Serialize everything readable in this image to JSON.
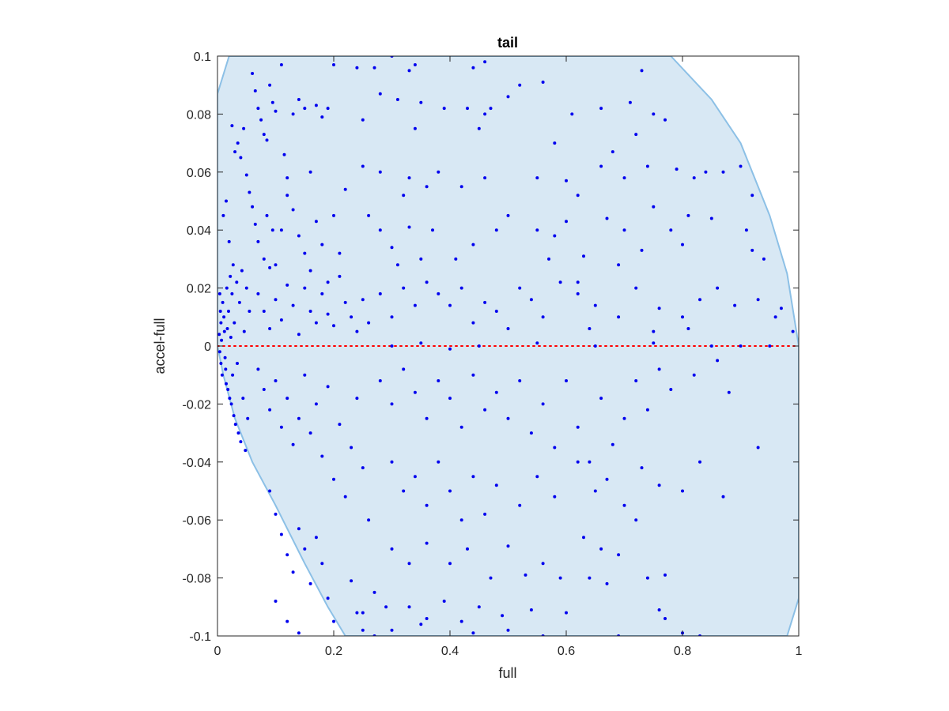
{
  "chart_data": {
    "type": "scatter",
    "title": "tail",
    "xlabel": "full",
    "ylabel": "accel-full",
    "xlim": [
      0,
      1
    ],
    "ylim": [
      -0.1,
      0.1
    ],
    "xticks": [
      "0",
      "0.2",
      "0.4",
      "0.6",
      "0.8",
      "1"
    ],
    "yticks": [
      "-0.1",
      "-0.08",
      "-0.06",
      "-0.04",
      "-0.02",
      "0",
      "0.02",
      "0.04",
      "0.06",
      "0.08",
      "0.1"
    ],
    "grid": false,
    "colors": {
      "points": "#0000ee",
      "region_fill": "#d8e8f4",
      "region_edge": "#8cc0e6",
      "zero_line": "#ff0000"
    },
    "reference_line": {
      "y": 0,
      "style": "dotted"
    },
    "region": {
      "upper": [
        [
          0,
          0.087
        ],
        [
          0.02,
          0.1
        ],
        [
          0.78,
          0.1
        ],
        [
          0.85,
          0.085
        ],
        [
          0.9,
          0.07
        ],
        [
          0.95,
          0.045
        ],
        [
          0.98,
          0.025
        ],
        [
          1.0,
          0.0
        ]
      ],
      "lower": [
        [
          0,
          0.0
        ],
        [
          0.01,
          -0.01
        ],
        [
          0.03,
          -0.025
        ],
        [
          0.06,
          -0.04
        ],
        [
          0.1,
          -0.055
        ],
        [
          0.15,
          -0.075
        ],
        [
          0.19,
          -0.09
        ],
        [
          0.22,
          -0.1
        ],
        [
          0.98,
          -0.1
        ],
        [
          1.0,
          -0.087
        ]
      ]
    },
    "points": [
      [
        0.004,
        0.018
      ],
      [
        0.005,
        0.012
      ],
      [
        0.006,
        0.008
      ],
      [
        0.003,
        0.004
      ],
      [
        0.007,
        0.002
      ],
      [
        0.004,
        -0.002
      ],
      [
        0.006,
        -0.006
      ],
      [
        0.008,
        -0.01
      ],
      [
        0.009,
        0.015
      ],
      [
        0.011,
        0.01
      ],
      [
        0.012,
        0.005
      ],
      [
        0.013,
        -0.004
      ],
      [
        0.014,
        -0.008
      ],
      [
        0.015,
        -0.013
      ],
      [
        0.016,
        0.02
      ],
      [
        0.017,
        0.006
      ],
      [
        0.018,
        -0.015
      ],
      [
        0.019,
        0.012
      ],
      [
        0.021,
        -0.018
      ],
      [
        0.022,
        0.024
      ],
      [
        0.023,
        0.003
      ],
      [
        0.024,
        -0.02
      ],
      [
        0.025,
        0.018
      ],
      [
        0.026,
        -0.01
      ],
      [
        0.027,
        0.028
      ],
      [
        0.028,
        -0.024
      ],
      [
        0.029,
        0.008
      ],
      [
        0.031,
        -0.027
      ],
      [
        0.033,
        0.022
      ],
      [
        0.034,
        -0.006
      ],
      [
        0.036,
        -0.03
      ],
      [
        0.038,
        0.015
      ],
      [
        0.04,
        -0.033
      ],
      [
        0.042,
        0.026
      ],
      [
        0.044,
        -0.018
      ],
      [
        0.046,
        0.005
      ],
      [
        0.048,
        -0.036
      ],
      [
        0.05,
        0.02
      ],
      [
        0.052,
        -0.025
      ],
      [
        0.055,
        0.012
      ],
      [
        0.01,
        0.045
      ],
      [
        0.015,
        0.05
      ],
      [
        0.02,
        0.036
      ],
      [
        0.025,
        0.076
      ],
      [
        0.03,
        0.067
      ],
      [
        0.035,
        0.07
      ],
      [
        0.04,
        0.065
      ],
      [
        0.045,
        0.075
      ],
      [
        0.05,
        0.059
      ],
      [
        0.055,
        0.053
      ],
      [
        0.06,
        0.094
      ],
      [
        0.065,
        0.088
      ],
      [
        0.07,
        0.082
      ],
      [
        0.075,
        0.078
      ],
      [
        0.08,
        0.073
      ],
      [
        0.085,
        0.071
      ],
      [
        0.09,
        0.09
      ],
      [
        0.095,
        0.084
      ],
      [
        0.1,
        0.081
      ],
      [
        0.11,
        0.097
      ],
      [
        0.115,
        0.066
      ],
      [
        0.12,
        0.058
      ],
      [
        0.13,
        0.08
      ],
      [
        0.14,
        0.085
      ],
      [
        0.15,
        0.082
      ],
      [
        0.16,
        0.06
      ],
      [
        0.17,
        0.083
      ],
      [
        0.18,
        0.079
      ],
      [
        0.19,
        0.082
      ],
      [
        0.2,
        0.097
      ],
      [
        0.06,
        0.048
      ],
      [
        0.065,
        0.042
      ],
      [
        0.07,
        0.036
      ],
      [
        0.08,
        0.03
      ],
      [
        0.085,
        0.045
      ],
      [
        0.09,
        0.027
      ],
      [
        0.095,
        0.04
      ],
      [
        0.1,
        0.028
      ],
      [
        0.11,
        0.04
      ],
      [
        0.12,
        0.052
      ],
      [
        0.13,
        0.047
      ],
      [
        0.14,
        0.038
      ],
      [
        0.15,
        0.032
      ],
      [
        0.16,
        0.026
      ],
      [
        0.17,
        0.043
      ],
      [
        0.18,
        0.035
      ],
      [
        0.19,
        0.022
      ],
      [
        0.2,
        0.045
      ],
      [
        0.21,
        0.032
      ],
      [
        0.22,
        0.054
      ],
      [
        0.07,
        0.018
      ],
      [
        0.08,
        0.012
      ],
      [
        0.09,
        0.006
      ],
      [
        0.1,
        0.016
      ],
      [
        0.11,
        0.009
      ],
      [
        0.12,
        0.021
      ],
      [
        0.13,
        0.014
      ],
      [
        0.14,
        0.004
      ],
      [
        0.15,
        0.02
      ],
      [
        0.16,
        0.012
      ],
      [
        0.17,
        0.008
      ],
      [
        0.18,
        0.018
      ],
      [
        0.19,
        0.011
      ],
      [
        0.2,
        0.007
      ],
      [
        0.21,
        0.024
      ],
      [
        0.22,
        0.015
      ],
      [
        0.23,
        0.01
      ],
      [
        0.24,
        0.005
      ],
      [
        0.25,
        0.016
      ],
      [
        0.26,
        0.008
      ],
      [
        0.07,
        -0.008
      ],
      [
        0.08,
        -0.015
      ],
      [
        0.09,
        -0.022
      ],
      [
        0.1,
        -0.012
      ],
      [
        0.11,
        -0.028
      ],
      [
        0.12,
        -0.018
      ],
      [
        0.13,
        -0.034
      ],
      [
        0.14,
        -0.025
      ],
      [
        0.15,
        -0.01
      ],
      [
        0.16,
        -0.03
      ],
      [
        0.17,
        -0.02
      ],
      [
        0.18,
        -0.038
      ],
      [
        0.19,
        -0.014
      ],
      [
        0.2,
        -0.046
      ],
      [
        0.21,
        -0.027
      ],
      [
        0.22,
        -0.052
      ],
      [
        0.23,
        -0.035
      ],
      [
        0.24,
        -0.018
      ],
      [
        0.25,
        -0.042
      ],
      [
        0.26,
        -0.06
      ],
      [
        0.09,
        -0.05
      ],
      [
        0.1,
        -0.058
      ],
      [
        0.11,
        -0.065
      ],
      [
        0.12,
        -0.072
      ],
      [
        0.13,
        -0.078
      ],
      [
        0.14,
        -0.063
      ],
      [
        0.15,
        -0.07
      ],
      [
        0.16,
        -0.082
      ],
      [
        0.17,
        -0.066
      ],
      [
        0.18,
        -0.075
      ],
      [
        0.1,
        -0.088
      ],
      [
        0.12,
        -0.095
      ],
      [
        0.14,
        -0.099
      ],
      [
        0.19,
        -0.087
      ],
      [
        0.2,
        -0.095
      ],
      [
        0.23,
        -0.081
      ],
      [
        0.24,
        -0.092
      ],
      [
        0.25,
        -0.098
      ],
      [
        0.27,
        -0.085
      ],
      [
        0.29,
        -0.09
      ],
      [
        0.24,
        0.096
      ],
      [
        0.27,
        0.096
      ],
      [
        0.3,
        0.1
      ],
      [
        0.33,
        0.095
      ],
      [
        0.34,
        0.097
      ],
      [
        0.44,
        0.096
      ],
      [
        0.46,
        0.098
      ],
      [
        0.52,
        0.09
      ],
      [
        0.56,
        0.091
      ],
      [
        0.73,
        0.095
      ],
      [
        0.28,
        0.087
      ],
      [
        0.31,
        0.085
      ],
      [
        0.35,
        0.084
      ],
      [
        0.39,
        0.082
      ],
      [
        0.43,
        0.082
      ],
      [
        0.47,
        0.082
      ],
      [
        0.5,
        0.086
      ],
      [
        0.61,
        0.08
      ],
      [
        0.66,
        0.082
      ],
      [
        0.71,
        0.084
      ],
      [
        0.25,
        0.078
      ],
      [
        0.34,
        0.075
      ],
      [
        0.45,
        0.075
      ],
      [
        0.46,
        0.08
      ],
      [
        0.58,
        0.07
      ],
      [
        0.68,
        0.067
      ],
      [
        0.72,
        0.073
      ],
      [
        0.75,
        0.08
      ],
      [
        0.77,
        0.078
      ],
      [
        0.84,
        0.06
      ],
      [
        0.25,
        0.062
      ],
      [
        0.26,
        0.045
      ],
      [
        0.28,
        0.06
      ],
      [
        0.32,
        0.052
      ],
      [
        0.33,
        0.058
      ],
      [
        0.36,
        0.055
      ],
      [
        0.38,
        0.06
      ],
      [
        0.42,
        0.055
      ],
      [
        0.46,
        0.058
      ],
      [
        0.55,
        0.058
      ],
      [
        0.6,
        0.057
      ],
      [
        0.62,
        0.052
      ],
      [
        0.66,
        0.062
      ],
      [
        0.7,
        0.058
      ],
      [
        0.74,
        0.062
      ],
      [
        0.79,
        0.061
      ],
      [
        0.82,
        0.058
      ],
      [
        0.87,
        0.06
      ],
      [
        0.9,
        0.062
      ],
      [
        0.92,
        0.052
      ],
      [
        0.28,
        0.04
      ],
      [
        0.3,
        0.034
      ],
      [
        0.31,
        0.028
      ],
      [
        0.33,
        0.041
      ],
      [
        0.35,
        0.03
      ],
      [
        0.37,
        0.04
      ],
      [
        0.41,
        0.03
      ],
      [
        0.44,
        0.035
      ],
      [
        0.48,
        0.04
      ],
      [
        0.5,
        0.045
      ],
      [
        0.55,
        0.04
      ],
      [
        0.58,
        0.038
      ],
      [
        0.6,
        0.043
      ],
      [
        0.63,
        0.031
      ],
      [
        0.67,
        0.044
      ],
      [
        0.7,
        0.04
      ],
      [
        0.75,
        0.048
      ],
      [
        0.78,
        0.04
      ],
      [
        0.81,
        0.045
      ],
      [
        0.85,
        0.044
      ],
      [
        0.91,
        0.04
      ],
      [
        0.92,
        0.033
      ],
      [
        0.94,
        0.03
      ],
      [
        0.97,
        0.013
      ],
      [
        0.99,
        0.005
      ],
      [
        0.8,
        0.035
      ],
      [
        0.73,
        0.033
      ],
      [
        0.69,
        0.028
      ],
      [
        0.62,
        0.022
      ],
      [
        0.57,
        0.03
      ],
      [
        0.28,
        0.018
      ],
      [
        0.3,
        0.01
      ],
      [
        0.32,
        0.02
      ],
      [
        0.34,
        0.014
      ],
      [
        0.36,
        0.022
      ],
      [
        0.38,
        0.018
      ],
      [
        0.4,
        0.014
      ],
      [
        0.42,
        0.02
      ],
      [
        0.44,
        0.008
      ],
      [
        0.46,
        0.015
      ],
      [
        0.48,
        0.012
      ],
      [
        0.52,
        0.02
      ],
      [
        0.54,
        0.016
      ],
      [
        0.56,
        0.01
      ],
      [
        0.59,
        0.022
      ],
      [
        0.62,
        0.018
      ],
      [
        0.65,
        0.014
      ],
      [
        0.69,
        0.01
      ],
      [
        0.72,
        0.02
      ],
      [
        0.76,
        0.013
      ],
      [
        0.8,
        0.01
      ],
      [
        0.83,
        0.016
      ],
      [
        0.86,
        0.02
      ],
      [
        0.89,
        0.014
      ],
      [
        0.93,
        0.016
      ],
      [
        0.96,
        0.01
      ],
      [
        0.81,
        0.006
      ],
      [
        0.75,
        0.005
      ],
      [
        0.64,
        0.006
      ],
      [
        0.5,
        0.006
      ],
      [
        0.3,
        0.0
      ],
      [
        0.35,
        0.001
      ],
      [
        0.4,
        -0.001
      ],
      [
        0.45,
        0.0
      ],
      [
        0.55,
        0.001
      ],
      [
        0.65,
        0.0
      ],
      [
        0.75,
        0.001
      ],
      [
        0.85,
        0.0
      ],
      [
        0.9,
        0.0
      ],
      [
        0.95,
        0.0
      ],
      [
        0.28,
        -0.012
      ],
      [
        0.3,
        -0.02
      ],
      [
        0.32,
        -0.008
      ],
      [
        0.34,
        -0.016
      ],
      [
        0.36,
        -0.025
      ],
      [
        0.38,
        -0.012
      ],
      [
        0.4,
        -0.018
      ],
      [
        0.42,
        -0.028
      ],
      [
        0.44,
        -0.01
      ],
      [
        0.46,
        -0.022
      ],
      [
        0.48,
        -0.016
      ],
      [
        0.5,
        -0.025
      ],
      [
        0.52,
        -0.012
      ],
      [
        0.54,
        -0.03
      ],
      [
        0.56,
        -0.02
      ],
      [
        0.58,
        -0.035
      ],
      [
        0.6,
        -0.012
      ],
      [
        0.62,
        -0.028
      ],
      [
        0.64,
        -0.04
      ],
      [
        0.66,
        -0.018
      ],
      [
        0.68,
        -0.034
      ],
      [
        0.7,
        -0.025
      ],
      [
        0.72,
        -0.012
      ],
      [
        0.74,
        -0.022
      ],
      [
        0.76,
        -0.008
      ],
      [
        0.78,
        -0.015
      ],
      [
        0.82,
        -0.01
      ],
      [
        0.86,
        -0.005
      ],
      [
        0.88,
        -0.016
      ],
      [
        0.93,
        -0.035
      ],
      [
        0.3,
        -0.04
      ],
      [
        0.32,
        -0.05
      ],
      [
        0.34,
        -0.045
      ],
      [
        0.36,
        -0.055
      ],
      [
        0.38,
        -0.04
      ],
      [
        0.4,
        -0.05
      ],
      [
        0.42,
        -0.06
      ],
      [
        0.44,
        -0.045
      ],
      [
        0.46,
        -0.058
      ],
      [
        0.48,
        -0.048
      ],
      [
        0.52,
        -0.055
      ],
      [
        0.55,
        -0.045
      ],
      [
        0.58,
        -0.052
      ],
      [
        0.62,
        -0.04
      ],
      [
        0.65,
        -0.05
      ],
      [
        0.67,
        -0.046
      ],
      [
        0.7,
        -0.055
      ],
      [
        0.73,
        -0.042
      ],
      [
        0.76,
        -0.048
      ],
      [
        0.8,
        -0.05
      ],
      [
        0.83,
        -0.04
      ],
      [
        0.87,
        -0.052
      ],
      [
        0.3,
        -0.07
      ],
      [
        0.33,
        -0.075
      ],
      [
        0.36,
        -0.068
      ],
      [
        0.4,
        -0.075
      ],
      [
        0.43,
        -0.07
      ],
      [
        0.47,
        -0.08
      ],
      [
        0.5,
        -0.069
      ],
      [
        0.53,
        -0.079
      ],
      [
        0.56,
        -0.075
      ],
      [
        0.59,
        -0.08
      ],
      [
        0.63,
        -0.066
      ],
      [
        0.66,
        -0.07
      ],
      [
        0.69,
        -0.072
      ],
      [
        0.72,
        -0.06
      ],
      [
        0.74,
        -0.08
      ],
      [
        0.77,
        -0.079
      ],
      [
        0.67,
        -0.082
      ],
      [
        0.64,
        -0.08
      ],
      [
        0.33,
        -0.09
      ],
      [
        0.36,
        -0.094
      ],
      [
        0.39,
        -0.088
      ],
      [
        0.42,
        -0.095
      ],
      [
        0.45,
        -0.09
      ],
      [
        0.49,
        -0.093
      ],
      [
        0.54,
        -0.091
      ],
      [
        0.6,
        -0.092
      ],
      [
        0.69,
        -0.1
      ],
      [
        0.76,
        -0.091
      ],
      [
        0.77,
        -0.094
      ],
      [
        0.8,
        -0.099
      ],
      [
        0.83,
        -0.1
      ],
      [
        0.25,
        -0.092
      ],
      [
        0.27,
        -0.1
      ],
      [
        0.3,
        -0.098
      ],
      [
        0.35,
        -0.096
      ],
      [
        0.44,
        -0.099
      ],
      [
        0.5,
        -0.098
      ],
      [
        0.56,
        -0.1
      ]
    ]
  }
}
